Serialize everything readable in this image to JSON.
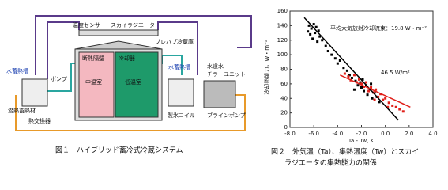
{
  "figure1": {
    "labels": [
      "温度センサ",
      "スカイラジエータ",
      "プレハブ冷蔵庫",
      "断熱隔壁",
      "冷却器",
      "中温室",
      "低温室",
      "水蓄熱槽",
      "ポンプ",
      "潜熱蓄熱材",
      "熱交換器",
      "水蓄熱槽",
      "水道水",
      "チラーユニット",
      "製氷コイル",
      "ブラインポンプ"
    ],
    "caption": "図１　ハイブリッド蓄冷式冷蔵システム"
  },
  "chart_data": {
    "type": "scatter",
    "caption": [
      "図２　外気温（Ta）、集熱温度（Tw）とスカイ",
      "ラジエータの集熱能力の関係"
    ],
    "xlabel": "Ta - Tw, K",
    "ylabel": "冷却熱能力，W・m⁻²",
    "xlim": [
      -8,
      4
    ],
    "ylim": [
      0,
      160
    ],
    "xticks": [
      {
        "value": -8,
        "label": "-8.0"
      },
      {
        "value": -6,
        "label": "-6.0"
      },
      {
        "value": -4,
        "label": "-4.0"
      },
      {
        "value": -2,
        "label": "-2.0"
      },
      {
        "value": 0,
        "label": "0.0"
      },
      {
        "value": 2,
        "label": "2.0"
      },
      {
        "value": 4,
        "label": "4.0"
      }
    ],
    "yticks": [
      0,
      20,
      40,
      60,
      80,
      100,
      120,
      140,
      160
    ],
    "annotations": [
      "平均大気放射冷却流束：19.8 W・m⁻²",
      "46.5 W/m²"
    ],
    "series": [
      {
        "color": "#000000",
        "x": [
          -6.4,
          -6.2,
          -6.0,
          -5.8,
          -6.3,
          -5.9,
          -5.6,
          -5.5,
          -6.1,
          -5.7,
          -5.3,
          -6.5,
          -5.0,
          -4.8,
          -4.5,
          -4.2,
          -4.0,
          -3.8,
          -3.5,
          -3.2,
          -3.0,
          -2.8,
          -2.5,
          -2.3,
          -2.1,
          -2.0,
          -1.8,
          -1.6,
          -1.5,
          -1.3,
          -1.1,
          -0.9,
          -0.7,
          -0.5,
          -2.6,
          -1.9,
          -1.2
        ],
        "values": [
          140,
          136,
          142,
          138,
          128,
          130,
          133,
          125,
          122,
          118,
          120,
          132,
          112,
          105,
          100,
          95,
          88,
          92,
          82,
          78,
          72,
          68,
          64,
          58,
          62,
          55,
          50,
          58,
          45,
          52,
          40,
          48,
          42,
          35,
          52,
          66,
          60
        ]
      },
      {
        "color": "#e0201a",
        "x": [
          -3.4,
          -3.1,
          -2.9,
          -2.6,
          -2.4,
          -2.2,
          -2.0,
          -1.8,
          -1.6,
          -1.4,
          -1.2,
          -1.0,
          -0.8,
          -0.6,
          -0.4,
          -0.2,
          0.0,
          0.3,
          0.6,
          0.9,
          1.2,
          1.5,
          -0.9,
          0.2
        ],
        "values": [
          74,
          70,
          65,
          72,
          62,
          66,
          60,
          56,
          62,
          50,
          55,
          48,
          52,
          42,
          46,
          38,
          40,
          34,
          30,
          28,
          25,
          22,
          38,
          28
        ]
      }
    ],
    "fit_lines": [
      {
        "color": "#000000",
        "x": [
          -6.8,
          1.1
        ],
        "values": [
          151,
          10
        ]
      },
      {
        "color": "#e0201a",
        "x": [
          -3.8,
          2.1
        ],
        "values": [
          72,
          28
        ]
      }
    ]
  }
}
